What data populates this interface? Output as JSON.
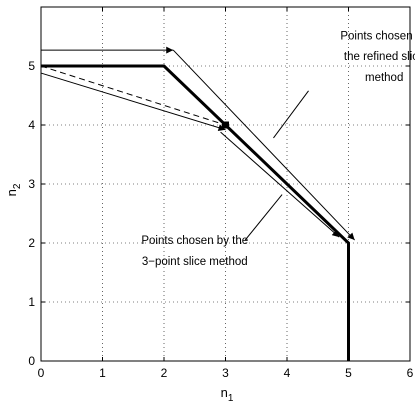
{
  "chart_data": {
    "type": "line",
    "xlabel": "n",
    "xlabel_sub": "1",
    "ylabel": "n",
    "ylabel_sub": "2",
    "xlim": [
      0,
      6
    ],
    "ylim": [
      0,
      6
    ],
    "xticks": [
      "0",
      "1",
      "2",
      "3",
      "4",
      "5",
      "6"
    ],
    "yticks": [
      "0",
      "1",
      "2",
      "3",
      "4",
      "5"
    ],
    "grid": true,
    "boundary": {
      "x": [
        0,
        2,
        5,
        5
      ],
      "y": [
        5,
        5,
        2,
        0
      ]
    },
    "marked_point": {
      "x": 3,
      "y": 4
    },
    "dashed_line": {
      "x": [
        0,
        3
      ],
      "y": [
        5,
        4
      ]
    },
    "arrows": [
      {
        "group": "refined",
        "x": [
          0,
          2.15
        ],
        "y": [
          5.27,
          5.27
        ]
      },
      {
        "group": "refined",
        "x": [
          2.15,
          5.1
        ],
        "y": [
          5.27,
          2.05
        ]
      },
      {
        "group": "three-point",
        "x": [
          0,
          3.0
        ],
        "y": [
          4.88,
          3.92
        ]
      },
      {
        "group": "three-point",
        "x": [
          2.92,
          4.85
        ],
        "y": [
          3.88,
          2.1
        ]
      }
    ],
    "annotations": [
      {
        "lines": [
          "Points chosen by",
          "the refined slice",
          "method"
        ],
        "text_x": 5.58,
        "text_y": [
          5.45,
          5.1,
          4.75
        ],
        "pointer": {
          "x": [
            4.35,
            3.78
          ],
          "y": [
            4.58,
            3.78
          ]
        }
      },
      {
        "lines": [
          "Points chosen by the",
          "3−point slice method"
        ],
        "text_x": 2.5,
        "text_y": [
          1.98,
          1.63
        ],
        "pointer": {
          "x": [
            3.32,
            3.92
          ],
          "y": [
            2.05,
            2.82
          ]
        }
      }
    ]
  }
}
